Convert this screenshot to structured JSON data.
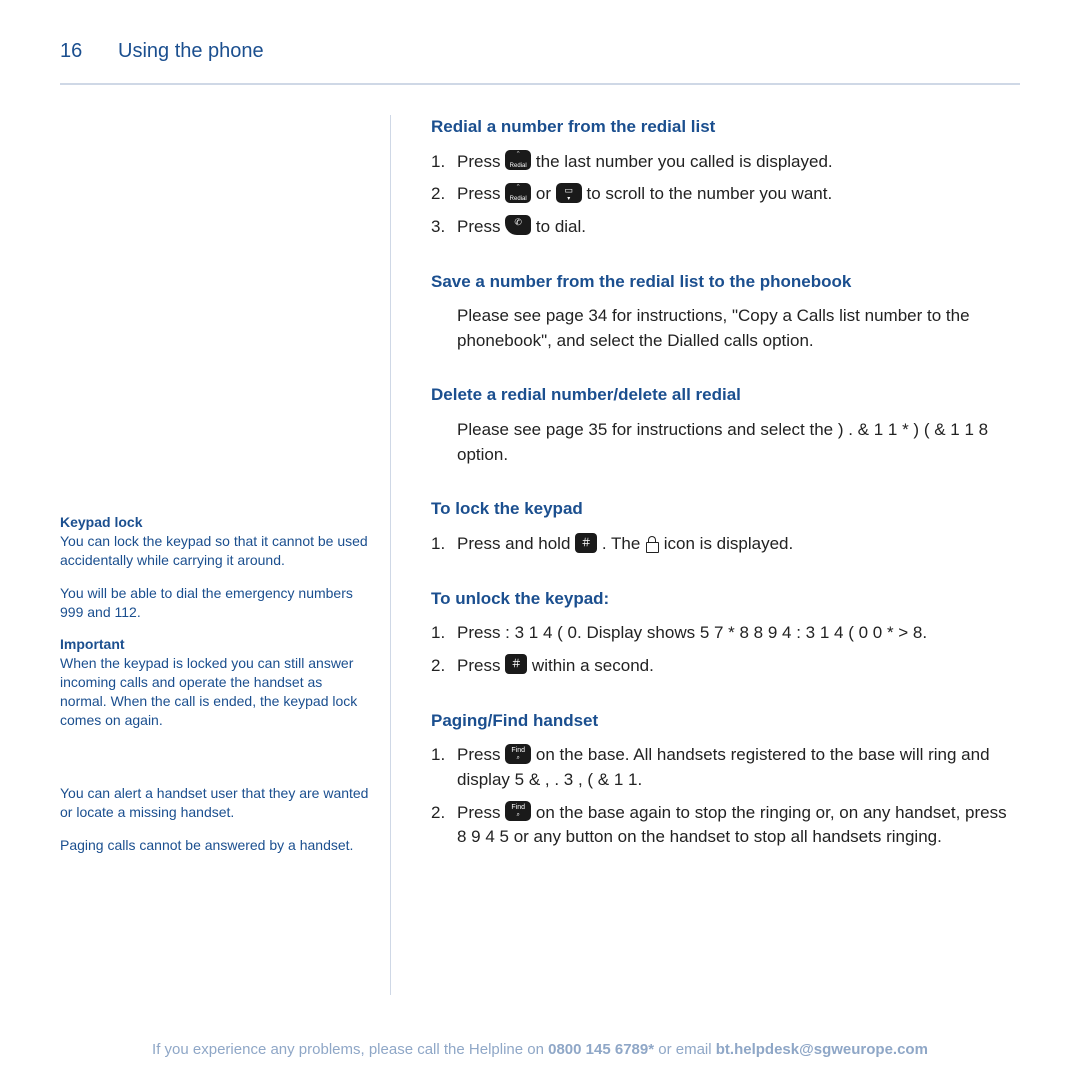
{
  "header": {
    "page_number": "16",
    "section": "Using the phone"
  },
  "sidebar": {
    "keypad_lock": {
      "title": "Keypad lock",
      "p1": "You can lock the keypad so that it cannot be used accidentally while carrying it around.",
      "p2": "You will be able to dial the emergency numbers 999 and 112."
    },
    "important": {
      "title": "Important",
      "p1": "When the keypad is locked you can still answer incoming calls and operate the handset as normal. When the call is ended, the keypad lock comes on again."
    },
    "paging": {
      "p1": "You can alert a handset user that they are wanted or locate a missing handset.",
      "p2": "Paging calls cannot be answered by a handset."
    }
  },
  "content": {
    "redial_list": {
      "heading": "Redial a number from the redial list",
      "steps": [
        {
          "pre": "Press ",
          "post": " the last number you called is displayed."
        },
        {
          "pre": "Press ",
          "mid": " or ",
          "post": " to scroll to the number you want."
        },
        {
          "pre": "Press ",
          "post": " to dial."
        }
      ]
    },
    "save_redial": {
      "heading": "Save a number from the redial list to the phonebook",
      "body": "Please see page 34 for instructions, \"Copy a Calls list number to the phonebook\", and select the Dialled calls option."
    },
    "delete_redial": {
      "heading": "Delete a redial number/delete all redial",
      "body": "Please see page 35 for instructions and select the  ) .  &  1  1  *  )    (  &  1  1  8 option."
    },
    "lock": {
      "heading": "To lock the keypad",
      "step_pre": "Press and hold ",
      "step_mid": ". The ",
      "step_post": " icon is displayed."
    },
    "unlock": {
      "heading": "To unlock the keypad:",
      "step1": "Press   : 3  1  4  (   0. Display shows   5  7  *  8  8       9  4   : 3  1  4  (  0   0  *  >  8.",
      "step2_pre": "Press ",
      "step2_post": " within a second."
    },
    "paging": {
      "heading": "Paging/Find handset",
      "step1_pre": "Press ",
      "step1_post": " on the base. All handsets registered to the base will ring and display  5  &  ,  . 3  ,   (  &  1  1.",
      "step2_pre": "Press ",
      "step2_post": " on the base again to stop the ringing or, on any handset, press   8  9  4  5 or any button on the handset to stop all handsets ringing."
    }
  },
  "icons": {
    "redial_up": "＾",
    "redial_label": "Redial",
    "book_down": "▾",
    "book_top": "▭",
    "talk": "✆",
    "hash": "＃",
    "hash_sub": "⌂",
    "find": "Find",
    "find_sub": "⌕"
  },
  "footer": {
    "pre": "If you experience any problems, please call the Helpline on ",
    "phone": "0800 145 6789*",
    "mid": " or email ",
    "email": "bt.helpdesk@sgweurope.com"
  },
  "colors": {
    "brand": "#1b4f8f",
    "rule": "#cfd8e6",
    "footer": "#8fa7c7"
  }
}
